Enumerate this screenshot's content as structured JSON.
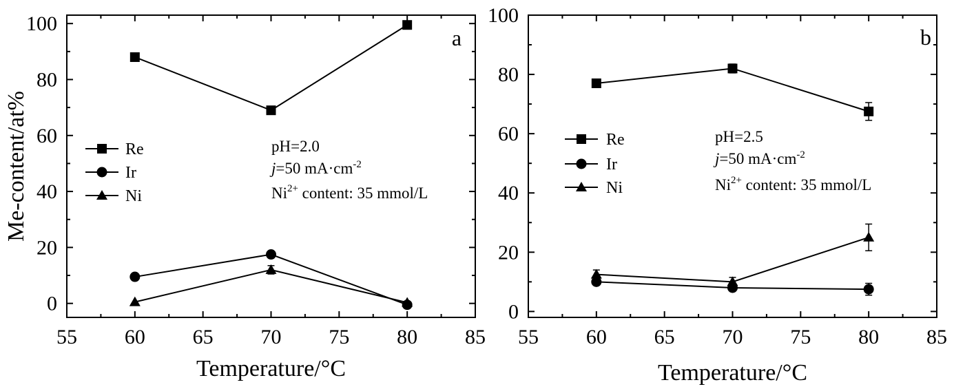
{
  "chart_data": [
    {
      "panel_label": "a",
      "type": "line",
      "title": "",
      "xlabel": "Temperature/°C",
      "ylabel": "Me-content/at%",
      "xlim": [
        55,
        85
      ],
      "ylim": [
        -5,
        103
      ],
      "xticks": [
        55,
        60,
        65,
        70,
        75,
        80,
        85
      ],
      "yticks": [
        0,
        20,
        40,
        60,
        80,
        100
      ],
      "x": [
        60,
        70,
        80
      ],
      "series": [
        {
          "name": "Re",
          "marker": "square",
          "values": [
            88,
            69,
            99.5
          ],
          "errors": [
            0,
            0,
            0
          ]
        },
        {
          "name": "Ir",
          "marker": "circle",
          "values": [
            9.5,
            17.5,
            -0.5
          ],
          "errors": [
            0,
            0,
            0
          ]
        },
        {
          "name": "Ni",
          "marker": "triangle",
          "values": [
            0.5,
            12,
            0.3
          ],
          "errors": [
            0,
            1.5,
            0
          ]
        }
      ],
      "annotation": {
        "line1": "pH=2.0",
        "j_symbol": "j",
        "line2_rest": "=50 mA·cm",
        "line2_sup": "-2",
        "line3_pre": "Ni",
        "line3_sup": "2+",
        "line3_post": " content: 35 mmol/L"
      },
      "legend_position": "left"
    },
    {
      "panel_label": "b",
      "type": "line",
      "title": "",
      "xlabel": "Temperature/°C",
      "ylabel": "",
      "xlim": [
        55,
        85
      ],
      "ylim": [
        -2,
        100
      ],
      "xticks": [
        55,
        60,
        65,
        70,
        75,
        80,
        85
      ],
      "yticks": [
        0,
        20,
        40,
        60,
        80,
        100
      ],
      "x": [
        60,
        70,
        80
      ],
      "series": [
        {
          "name": "Re",
          "marker": "square",
          "values": [
            77,
            82,
            67.5
          ],
          "errors": [
            1,
            1.5,
            3
          ]
        },
        {
          "name": "Ir",
          "marker": "circle",
          "values": [
            10,
            8,
            7.5
          ],
          "errors": [
            0.5,
            0.5,
            2
          ]
        },
        {
          "name": "Ni",
          "marker": "triangle",
          "values": [
            12.5,
            10,
            25
          ],
          "errors": [
            1.5,
            1.5,
            4.5
          ]
        }
      ],
      "annotation": {
        "line1": "pH=2.5",
        "j_symbol": "j",
        "line2_rest": "=50 mA·cm",
        "line2_sup": "-2",
        "line3_pre": "Ni",
        "line3_sup": "2+",
        "line3_post": " content: 35 mmol/L"
      },
      "legend_position": "left"
    }
  ]
}
